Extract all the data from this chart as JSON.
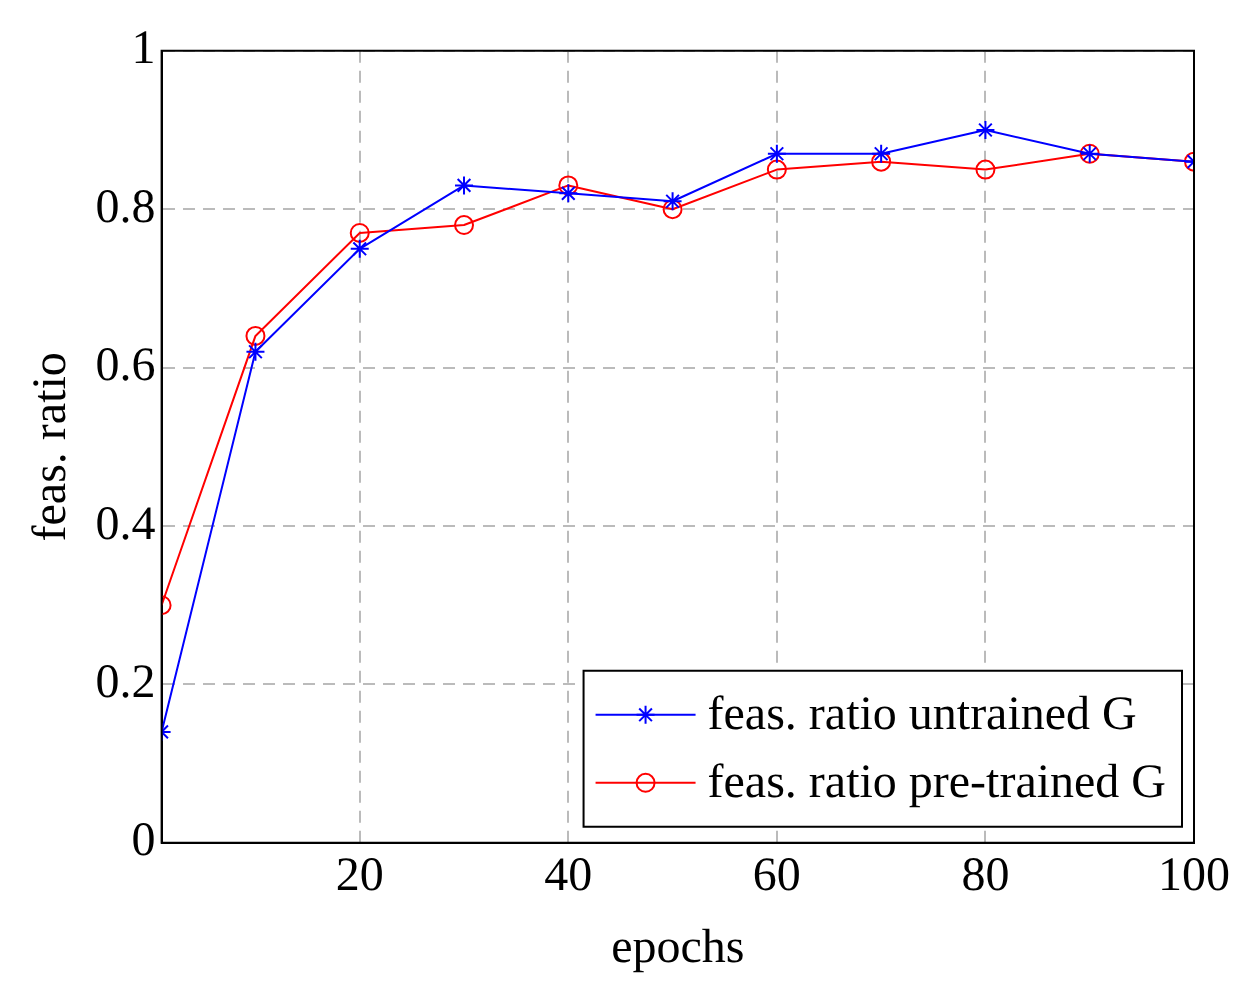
{
  "chart_data": {
    "type": "line",
    "xlabel": "epochs",
    "ylabel": "feas. ratio",
    "xlim": [
      1,
      100
    ],
    "xticks": [
      20,
      40,
      60,
      80,
      100
    ],
    "ylim": [
      0,
      1
    ],
    "yticks": [
      0,
      0.2,
      0.4,
      0.6,
      0.8,
      1
    ],
    "grid": true,
    "legend": "bottom right",
    "line_style": "solid",
    "x": [
      1,
      10,
      20,
      30,
      40,
      50,
      60,
      70,
      80,
      90,
      100
    ],
    "series": [
      {
        "name": "feas. ratio untrained G",
        "color": "#0000ff",
        "marker": "cross",
        "values": [
          0.14,
          0.62,
          0.75,
          0.83,
          0.82,
          0.81,
          0.87,
          0.87,
          0.9,
          0.87,
          0.86
        ]
      },
      {
        "name": "feas. ratio pre-trained G",
        "color": "#ff0000",
        "marker": "circle",
        "values": [
          0.3,
          0.64,
          0.77,
          0.78,
          0.83,
          0.8,
          0.85,
          0.86,
          0.85,
          0.87,
          0.86
        ]
      }
    ]
  }
}
